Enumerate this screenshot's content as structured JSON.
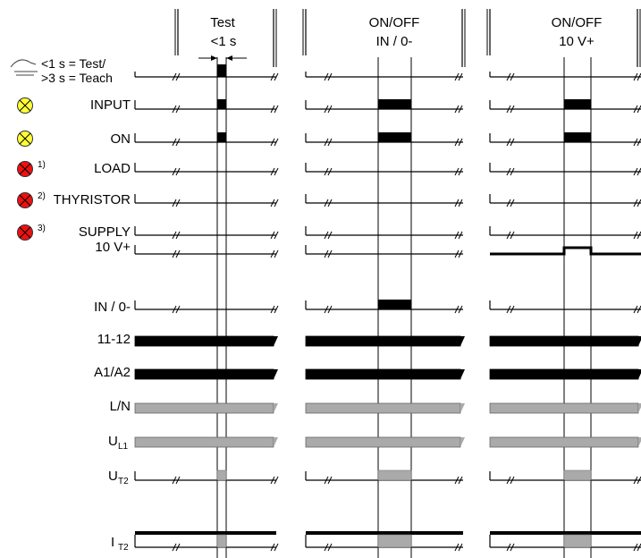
{
  "columns": [
    {
      "title_line1": "Test",
      "title_line2": "<1 s"
    },
    {
      "title_line1": "ON/OFF",
      "title_line2": "IN / 0-"
    },
    {
      "title_line1": "ON/OFF",
      "title_line2": "10 V+"
    }
  ],
  "button_legend": {
    "line1": "<1 s = Test/",
    "line2": ">3 s = Teach",
    "icon": "push-button-icon"
  },
  "signals": [
    {
      "key": "input",
      "label": "INPUT",
      "led": "yellow"
    },
    {
      "key": "on",
      "label": "ON",
      "led": "yellow"
    },
    {
      "key": "load",
      "label": "LOAD",
      "led": "red",
      "footnote": "1)"
    },
    {
      "key": "thyristor",
      "label": "THYRISTOR",
      "led": "red",
      "footnote": "2)"
    },
    {
      "key": "supply",
      "label": "SUPPLY",
      "led": "red",
      "footnote": "3)"
    },
    {
      "key": "v10",
      "label": "10 V+"
    },
    {
      "key": "in0",
      "label": "IN / 0-"
    },
    {
      "key": "t1112",
      "label": "11-12"
    },
    {
      "key": "a1a2",
      "label": "A1/A2"
    },
    {
      "key": "ln",
      "label": "L/N"
    },
    {
      "key": "ul1",
      "label": "U",
      "sub": "L1"
    },
    {
      "key": "ut2",
      "label": "U",
      "sub": "T2"
    },
    {
      "key": "it2",
      "label": "I",
      "sub": "T2"
    }
  ],
  "colors": {
    "led_yellow": "#ffff33",
    "led_red": "#ee1111",
    "bar_black": "#000000",
    "bar_gray": "#aaaaaa"
  }
}
